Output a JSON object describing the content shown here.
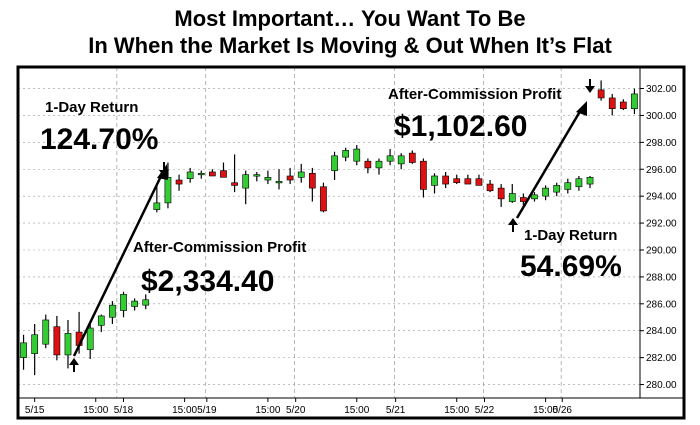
{
  "headline": {
    "line1": "Most Important…  You Want To Be",
    "line2": "In When the Market Is Moving & Out When It’s Flat"
  },
  "annotations": {
    "left_return_label": "1-Day Return",
    "left_return_value": "124.70%",
    "left_profit_label": "After-Commission Profit",
    "left_profit_value": "$2,334.40",
    "right_profit_label": "After-Commission Profit",
    "right_profit_value": "$1,102.60",
    "right_return_label": "1-Day Return",
    "right_return_value": "54.69%"
  },
  "colors": {
    "up": "#33cc33",
    "down": "#dd1111",
    "frame": "#000000",
    "grid": "#999999"
  },
  "chart_data": {
    "type": "candlestick",
    "title": "",
    "xlabel": "",
    "ylabel": "",
    "ylim": [
      279,
      303.6
    ],
    "yticks": [
      280,
      282,
      284,
      286,
      288,
      290,
      292,
      294,
      296,
      298,
      300,
      302
    ],
    "ytick_labels": [
      "280.00",
      "282.00",
      "284.00",
      "286.00",
      "288.00",
      "290.00",
      "292.00",
      "294.00",
      "296.00",
      "298.00",
      "300.00",
      "302.00"
    ],
    "x_tick_labels": [
      "5/15",
      "15:00",
      "5/18",
      "15:00",
      "5/19",
      "15:00",
      "5/20",
      "15:00",
      "5/21",
      "15:00",
      "5/22",
      "15:00",
      "5/26"
    ],
    "x_tick_bar_index": [
      1,
      6.5,
      9,
      14.5,
      16.5,
      22,
      24.5,
      30,
      33.5,
      39,
      41.5,
      47,
      48.5
    ],
    "day_separator_bar_index": [
      7.9,
      15.9,
      23.9,
      32.9,
      40.9,
      47.9
    ],
    "grid": true,
    "candles": [
      {
        "o": 282.0,
        "h": 283.7,
        "l": 281.1,
        "c": 283.1
      },
      {
        "o": 282.3,
        "h": 284.5,
        "l": 280.7,
        "c": 283.7
      },
      {
        "o": 283.0,
        "h": 285.2,
        "l": 282.7,
        "c": 284.8
      },
      {
        "o": 284.3,
        "h": 285.1,
        "l": 281.8,
        "c": 282.2
      },
      {
        "o": 282.2,
        "h": 284.8,
        "l": 281.2,
        "c": 283.8
      },
      {
        "o": 283.9,
        "h": 285.4,
        "l": 282.3,
        "c": 282.9
      },
      {
        "o": 282.6,
        "h": 284.6,
        "l": 281.9,
        "c": 284.2
      },
      {
        "o": 284.4,
        "h": 285.2,
        "l": 283.9,
        "c": 285.1
      },
      {
        "o": 285.0,
        "h": 286.2,
        "l": 284.5,
        "c": 285.9
      },
      {
        "o": 285.5,
        "h": 286.9,
        "l": 285.0,
        "c": 286.7
      },
      {
        "o": 285.8,
        "h": 286.4,
        "l": 285.5,
        "c": 286.2
      },
      {
        "o": 285.9,
        "h": 286.7,
        "l": 285.6,
        "c": 286.3
      },
      {
        "o": 293.0,
        "h": 294.9,
        "l": 292.8,
        "c": 293.5
      },
      {
        "o": 293.5,
        "h": 296.5,
        "l": 293.1,
        "c": 295.4
      },
      {
        "o": 295.2,
        "h": 295.6,
        "l": 294.4,
        "c": 294.9
      },
      {
        "o": 295.3,
        "h": 296.1,
        "l": 295.0,
        "c": 295.8
      },
      {
        "o": 295.6,
        "h": 295.9,
        "l": 295.3,
        "c": 295.7
      },
      {
        "o": 295.8,
        "h": 296.0,
        "l": 295.5,
        "c": 295.5
      },
      {
        "o": 295.9,
        "h": 296.5,
        "l": 295.4,
        "c": 295.4
      },
      {
        "o": 295.0,
        "h": 297.1,
        "l": 294.3,
        "c": 294.8
      },
      {
        "o": 294.6,
        "h": 295.9,
        "l": 293.4,
        "c": 295.6
      },
      {
        "o": 295.5,
        "h": 295.8,
        "l": 295.1,
        "c": 295.6
      },
      {
        "o": 295.2,
        "h": 295.9,
        "l": 294.9,
        "c": 295.4
      },
      {
        "o": 295.0,
        "h": 296.0,
        "l": 294.5,
        "c": 295.1
      },
      {
        "o": 295.5,
        "h": 296.1,
        "l": 294.9,
        "c": 295.2
      },
      {
        "o": 295.4,
        "h": 296.4,
        "l": 295.0,
        "c": 295.8
      },
      {
        "o": 295.7,
        "h": 296.1,
        "l": 293.6,
        "c": 294.6
      },
      {
        "o": 294.7,
        "h": 295.0,
        "l": 292.8,
        "c": 292.9
      },
      {
        "o": 295.9,
        "h": 297.3,
        "l": 295.2,
        "c": 297.0
      },
      {
        "o": 296.9,
        "h": 297.6,
        "l": 296.6,
        "c": 297.4
      },
      {
        "o": 296.6,
        "h": 297.8,
        "l": 296.3,
        "c": 297.5
      },
      {
        "o": 296.6,
        "h": 296.8,
        "l": 295.7,
        "c": 296.1
      },
      {
        "o": 296.1,
        "h": 296.8,
        "l": 295.6,
        "c": 296.6
      },
      {
        "o": 296.6,
        "h": 297.5,
        "l": 296.3,
        "c": 297.0
      },
      {
        "o": 296.4,
        "h": 297.2,
        "l": 296.0,
        "c": 297.0
      },
      {
        "o": 297.2,
        "h": 297.4,
        "l": 296.4,
        "c": 296.5
      },
      {
        "o": 296.6,
        "h": 296.8,
        "l": 293.9,
        "c": 294.5
      },
      {
        "o": 294.8,
        "h": 295.7,
        "l": 294.2,
        "c": 295.5
      },
      {
        "o": 295.5,
        "h": 295.8,
        "l": 294.6,
        "c": 294.9
      },
      {
        "o": 295.3,
        "h": 295.6,
        "l": 294.9,
        "c": 295.0
      },
      {
        "o": 295.3,
        "h": 295.6,
        "l": 294.9,
        "c": 294.9
      },
      {
        "o": 295.3,
        "h": 295.6,
        "l": 294.9,
        "c": 294.8
      },
      {
        "o": 294.9,
        "h": 295.2,
        "l": 294.3,
        "c": 294.4
      },
      {
        "o": 294.6,
        "h": 294.9,
        "l": 293.2,
        "c": 293.8
      },
      {
        "o": 293.6,
        "h": 294.9,
        "l": 293.5,
        "c": 294.2
      },
      {
        "o": 293.9,
        "h": 294.2,
        "l": 293.3,
        "c": 293.6
      },
      {
        "o": 293.8,
        "h": 294.3,
        "l": 293.6,
        "c": 294.1
      },
      {
        "o": 294.0,
        "h": 294.8,
        "l": 293.7,
        "c": 294.6
      },
      {
        "o": 294.3,
        "h": 295.0,
        "l": 294.0,
        "c": 294.8
      },
      {
        "o": 294.5,
        "h": 295.3,
        "l": 294.2,
        "c": 295.0
      },
      {
        "o": 294.7,
        "h": 295.5,
        "l": 294.4,
        "c": 295.3
      },
      {
        "o": 294.9,
        "h": 295.5,
        "l": 294.6,
        "c": 295.4
      },
      {
        "o": 301.9,
        "h": 302.6,
        "l": 301.1,
        "c": 301.3
      },
      {
        "o": 301.3,
        "h": 301.6,
        "l": 300.0,
        "c": 300.5
      },
      {
        "o": 301.0,
        "h": 301.2,
        "l": 300.4,
        "c": 300.5
      },
      {
        "o": 300.5,
        "h": 302.0,
        "l": 300.1,
        "c": 301.6
      }
    ]
  }
}
